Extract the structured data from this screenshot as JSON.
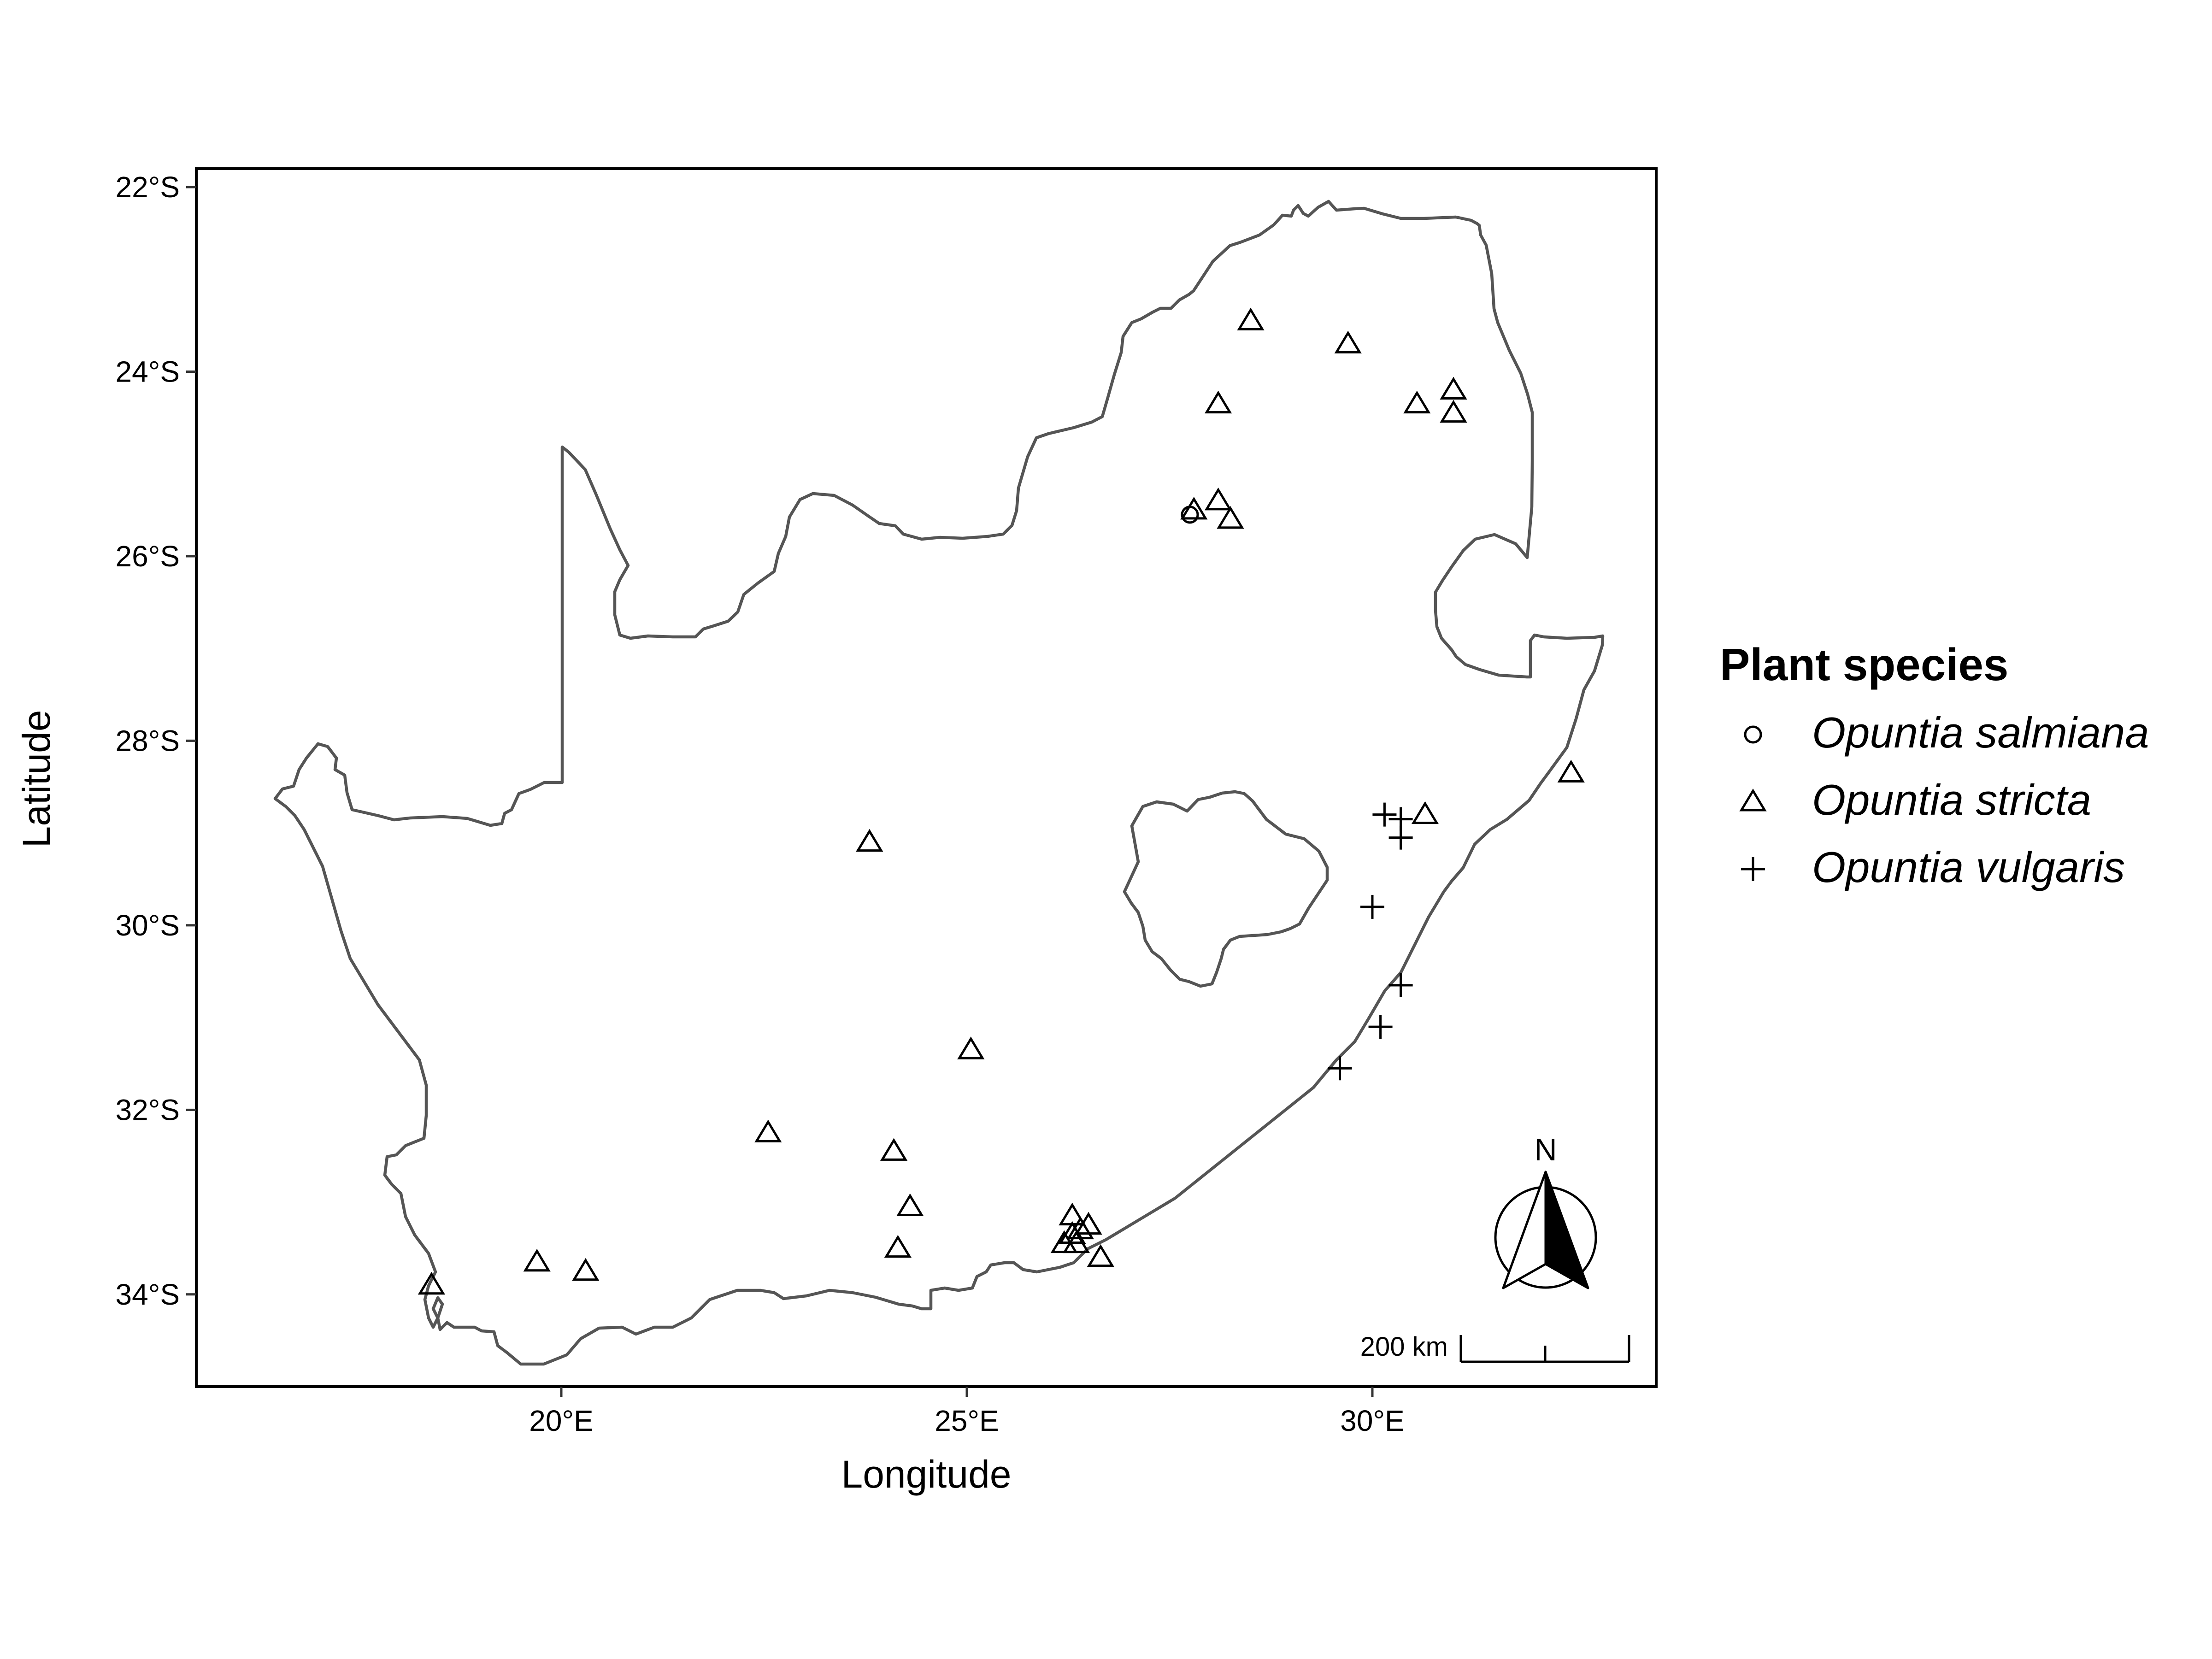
{
  "map": {
    "xlabel": "Longitude",
    "ylabel": "Latitude",
    "x_ticks": [
      {
        "value": 20,
        "label": "20°E"
      },
      {
        "value": 25,
        "label": "25°E"
      },
      {
        "value": 30,
        "label": "30°E"
      }
    ],
    "y_ticks": [
      {
        "value": -22,
        "label": "22°S"
      },
      {
        "value": -24,
        "label": "24°S"
      },
      {
        "value": -26,
        "label": "26°S"
      },
      {
        "value": -28,
        "label": "28°S"
      },
      {
        "value": -30,
        "label": "30°S"
      },
      {
        "value": -32,
        "label": "32°S"
      },
      {
        "value": -34,
        "label": "34°S"
      }
    ],
    "xlim": [
      15.5,
      33.5
    ],
    "ylim": [
      -35.0,
      -21.8
    ],
    "grid": false,
    "north_arrow_label": "N",
    "scale_bar_label": "200 km",
    "colors": {
      "outline": "#555555",
      "frame": "#000000"
    }
  },
  "legend": {
    "title": "Plant species",
    "placement": "right",
    "items": [
      {
        "label": "Opuntia salmiana",
        "shape": "circle"
      },
      {
        "label": "Opuntia stricta",
        "shape": "triangle"
      },
      {
        "label": "Opuntia vulgaris",
        "shape": "plus"
      }
    ]
  },
  "chart_data": {
    "type": "scatter",
    "series": [
      {
        "name": "Opuntia salmiana",
        "points": [
          [
            27.75,
            -25.55
          ]
        ]
      },
      {
        "name": "Opuntia stricta",
        "points": [
          [
            28.5,
            -23.45
          ],
          [
            29.7,
            -23.7
          ],
          [
            31.0,
            -24.2
          ],
          [
            30.55,
            -24.35
          ],
          [
            31.0,
            -24.45
          ],
          [
            28.1,
            -24.35
          ],
          [
            27.8,
            -25.5
          ],
          [
            28.1,
            -25.4
          ],
          [
            28.25,
            -25.6
          ],
          [
            32.45,
            -28.35
          ],
          [
            30.65,
            -28.8
          ],
          [
            23.8,
            -29.1
          ],
          [
            25.05,
            -31.35
          ],
          [
            22.55,
            -32.25
          ],
          [
            24.1,
            -32.45
          ],
          [
            24.3,
            -33.05
          ],
          [
            24.15,
            -33.5
          ],
          [
            26.3,
            -33.15
          ],
          [
            26.5,
            -33.25
          ],
          [
            26.4,
            -33.3
          ],
          [
            26.3,
            -33.35
          ],
          [
            26.2,
            -33.45
          ],
          [
            26.35,
            -33.45
          ],
          [
            26.65,
            -33.6
          ],
          [
            18.4,
            -33.9
          ],
          [
            19.7,
            -33.65
          ],
          [
            20.3,
            -33.75
          ]
        ]
      },
      {
        "name": "Opuntia vulgaris",
        "points": [
          [
            30.15,
            -28.8
          ],
          [
            30.35,
            -28.85
          ],
          [
            30.35,
            -29.05
          ],
          [
            30.0,
            -29.8
          ],
          [
            30.35,
            -30.65
          ],
          [
            30.1,
            -31.1
          ],
          [
            29.6,
            -31.55
          ]
        ]
      }
    ]
  }
}
